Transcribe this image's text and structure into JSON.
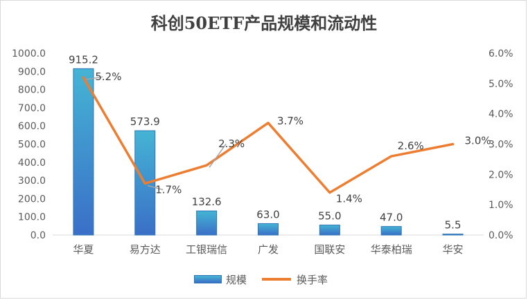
{
  "chart_data": {
    "type": "bar+line",
    "title": "科创50ETF产品规模和流动性",
    "categories": [
      "华夏",
      "易方达",
      "工银瑞信",
      "广发",
      "国联安",
      "华泰柏瑞",
      "华安"
    ],
    "series": [
      {
        "name": "规模",
        "type": "bar",
        "axis": "left",
        "values": [
          915.2,
          573.9,
          132.6,
          63.0,
          55.0,
          47.0,
          5.5
        ],
        "labels": [
          "915.2",
          "573.9",
          "132.6",
          "63.0",
          "55.0",
          "47.0",
          "5.5"
        ]
      },
      {
        "name": "换手率",
        "type": "line",
        "axis": "right",
        "values": [
          5.2,
          1.7,
          2.3,
          3.7,
          1.4,
          2.6,
          3.0
        ],
        "labels": [
          "5.2%",
          "1.7%",
          "2.3%",
          "3.7%",
          "1.4%",
          "2.6%",
          "3.0%"
        ]
      }
    ],
    "y_left": {
      "range": [
        0,
        1000
      ],
      "ticks": [
        "0.0",
        "100.0",
        "200.0",
        "300.0",
        "400.0",
        "500.0",
        "600.0",
        "700.0",
        "800.0",
        "900.0",
        "1000.0"
      ]
    },
    "y_right": {
      "range": [
        0,
        6
      ],
      "ticks": [
        "0.0%",
        "1.0%",
        "2.0%",
        "3.0%",
        "4.0%",
        "5.0%",
        "6.0%"
      ]
    },
    "grid": false,
    "legend_position": "bottom",
    "colors": {
      "bar_top": "#45b4d4",
      "bar_bottom": "#3a6fc7",
      "bar_edge": "#2e75b6",
      "line": "#ed7d31",
      "axis": "#d9d9d9",
      "leader": "#a6a6a6"
    }
  }
}
